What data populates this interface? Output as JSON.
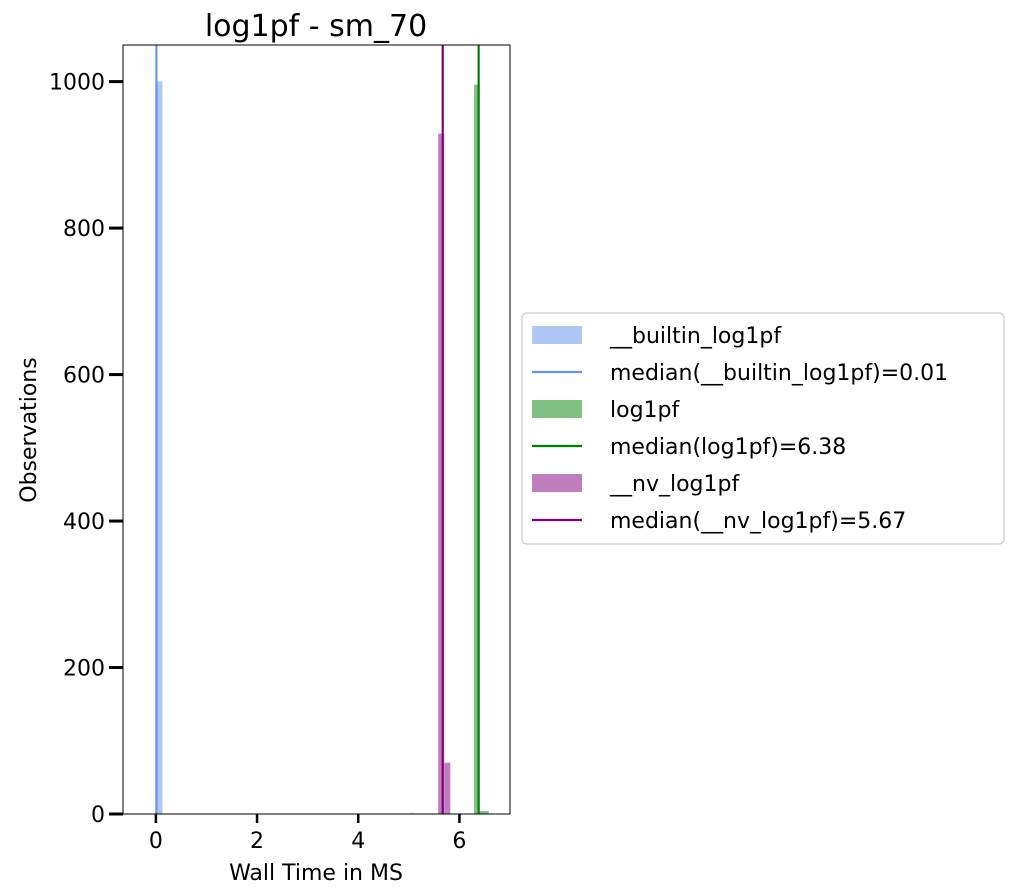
{
  "chart_data": {
    "type": "bar",
    "title": "log1pf - sm_70",
    "xlabel": "Wall Time in MS",
    "ylabel": "Observations",
    "xlim": [
      -0.65,
      7.0
    ],
    "ylim": [
      0,
      1050
    ],
    "xticks": [
      0,
      2,
      4,
      6
    ],
    "yticks": [
      0,
      200,
      400,
      600,
      800,
      1000
    ],
    "legend_position": "center-right (outside plot)",
    "series": [
      {
        "name": "__builtin_log1pf",
        "kind": "histogram",
        "color": "#aec7f4",
        "bins": [
          {
            "x0": 0.02,
            "x1": 0.13,
            "count": 1000
          }
        ]
      },
      {
        "name": "median(__builtin_log1pf)=0.01",
        "kind": "vline",
        "color": "#6495ed",
        "x": 0.01
      },
      {
        "name": "log1pf",
        "kind": "histogram",
        "color": "#80c080",
        "bins": [
          {
            "x0": 6.29,
            "x1": 6.4,
            "count": 996
          },
          {
            "x0": 6.4,
            "x1": 6.58,
            "count": 4
          }
        ]
      },
      {
        "name": "median(log1pf)=6.38",
        "kind": "vline",
        "color": "#008000",
        "x": 6.38
      },
      {
        "name": "__nv_log1pf",
        "kind": "histogram",
        "color": "#bf7fbf",
        "bins": [
          {
            "x0": 5.03,
            "x1": 5.1,
            "count": 1
          },
          {
            "x0": 5.58,
            "x1": 5.7,
            "count": 929
          },
          {
            "x0": 5.7,
            "x1": 5.82,
            "count": 70
          }
        ]
      },
      {
        "name": "median(__nv_log1pf)=5.67",
        "kind": "vline",
        "color": "#800080",
        "x": 5.67
      }
    ]
  }
}
